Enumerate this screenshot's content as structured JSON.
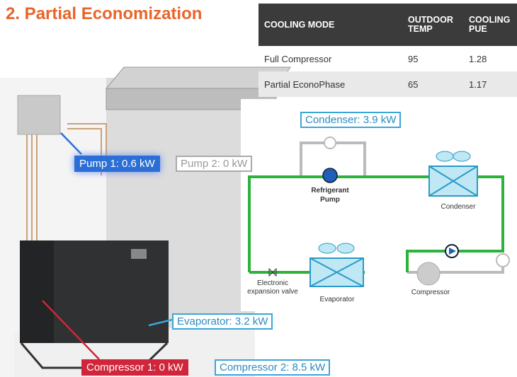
{
  "header": {
    "title": "2. Partial Economization"
  },
  "table": {
    "columns": [
      "COOLING MODE",
      "OUTDOOR TEMP",
      "COOLING PUE"
    ],
    "rows": [
      [
        "Full Compressor",
        95,
        1.28
      ],
      [
        "Partial EconoPhase",
        65,
        1.17
      ]
    ]
  },
  "callouts": {
    "condenser": "Condenser: 3.9 kW",
    "pump1": "Pump 1: 0.6 kW",
    "pump2": "Pump 2: 0 kW",
    "evaporator": "Evaporator: 3.2 kW",
    "compressor1": "Compressor 1: 0 kW",
    "compressor2": "Compressor 2: 8.5 kW"
  },
  "schematic": {
    "refrigerant_pump": [
      "Refrigerant",
      "Pump"
    ],
    "condenser": "Condenser",
    "expansion_valve": [
      "Electronic",
      "expansion valve"
    ],
    "evaporator": "Evaporator",
    "compressor": "Compressor"
  }
}
